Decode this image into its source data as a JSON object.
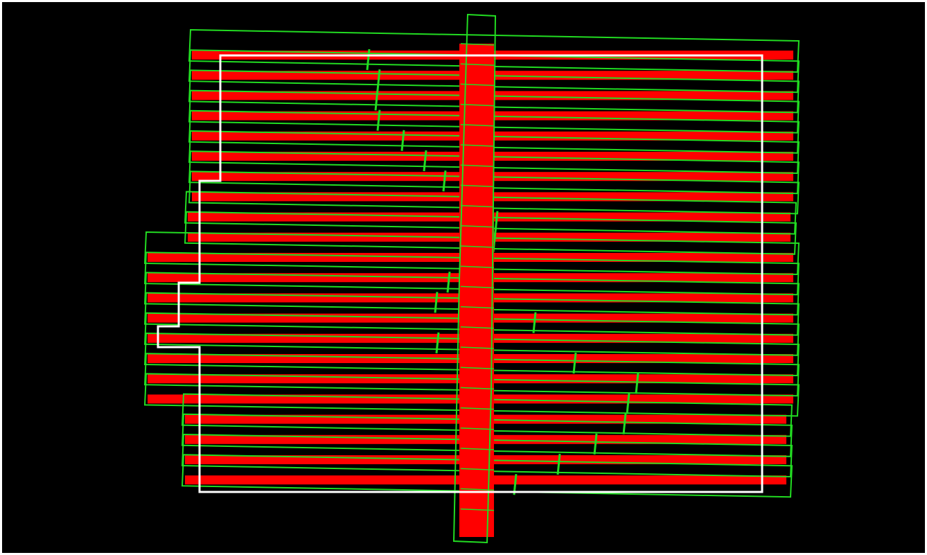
{
  "view": {
    "background": "#000000",
    "frame_color": "#ffffff"
  },
  "legend": [],
  "colors": {
    "coverage_fill": "#ff0000",
    "strip_outline": "#22dd22",
    "boundary": "#ffffff"
  },
  "strips": {
    "horizontal_count": 22,
    "vertical_count": 1
  }
}
